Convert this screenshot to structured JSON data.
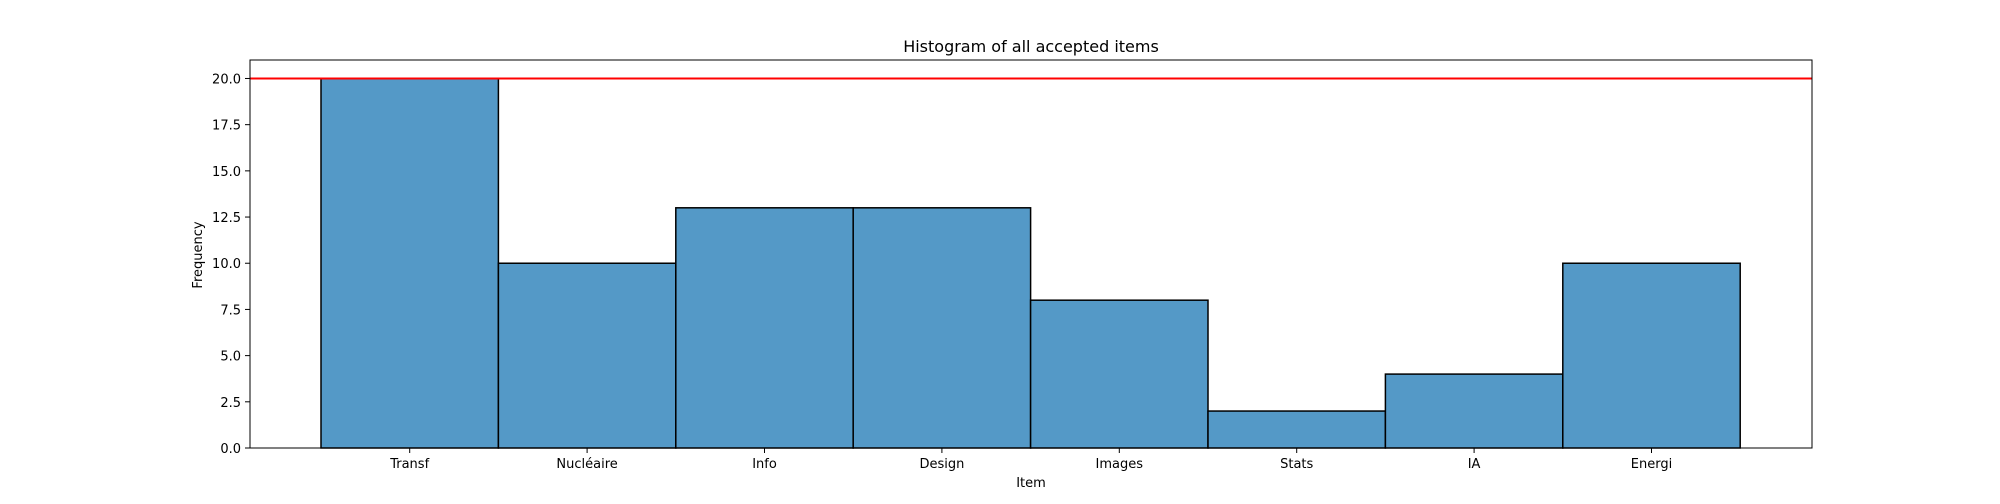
{
  "chart_data": {
    "type": "bar",
    "title": "Histogram of all accepted items",
    "xlabel": "Item",
    "ylabel": "Frequency",
    "categories": [
      "Transf",
      "Nucléaire",
      "Info",
      "Design",
      "Images",
      "Stats",
      "IA",
      "Energi"
    ],
    "values": [
      20,
      10,
      13,
      13,
      8,
      2,
      4,
      10
    ],
    "ylim": [
      0,
      21
    ],
    "yticks": [
      "0.0",
      "2.5",
      "5.0",
      "7.5",
      "10.0",
      "12.5",
      "15.0",
      "17.5",
      "20.0"
    ],
    "reference_line": {
      "y": 20,
      "color": "#ff0000"
    },
    "bar_color": "#5499c7",
    "bar_edge_color": "#000000",
    "grid": false,
    "legend": "none"
  }
}
